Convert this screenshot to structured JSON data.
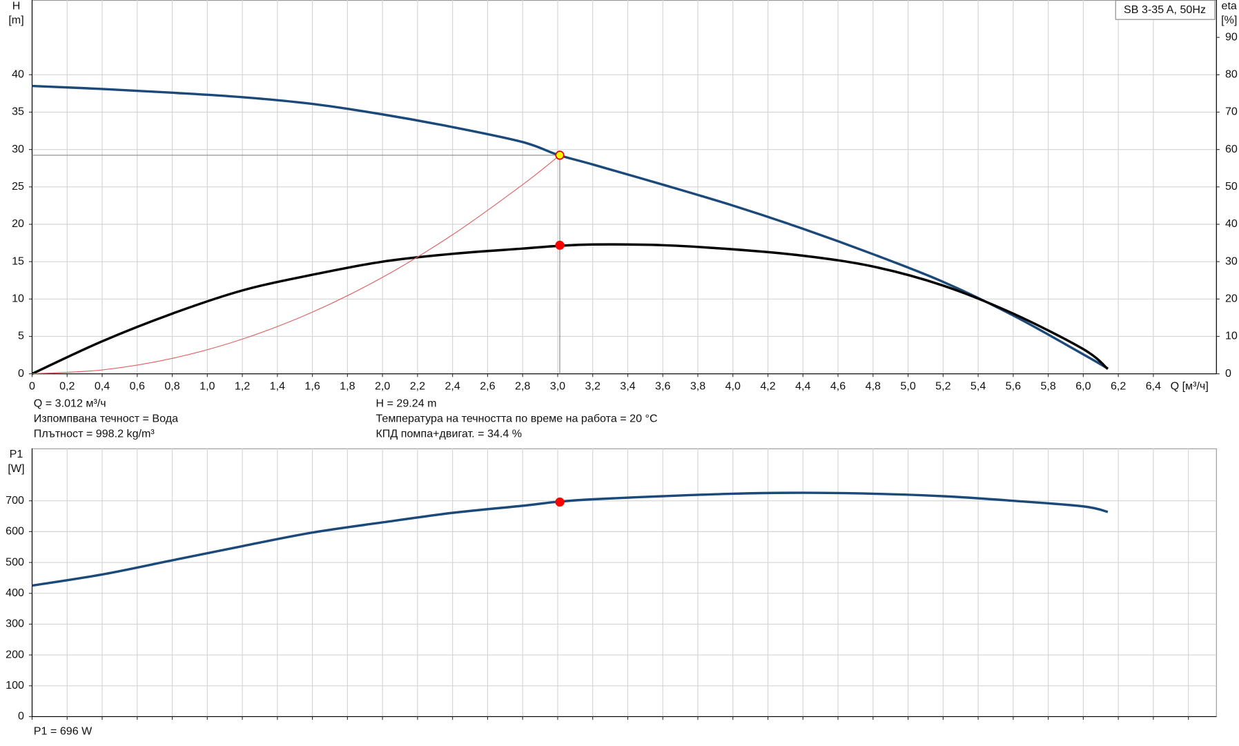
{
  "chart_data": [
    {
      "type": "line",
      "title": "SB 3-35 A, 50Hz",
      "ylabel": "H",
      "yunit": "[m]",
      "y2label": "eta",
      "y2unit": "[%]",
      "xlabel": "Q [м³/ч]",
      "xlim": [
        0,
        6.76
      ],
      "ylim": [
        0,
        50
      ],
      "y2lim": [
        0,
        100
      ],
      "grid": true,
      "show_xtick_labels": true,
      "xticks": [
        0,
        {
          "value": 0.2,
          "label": "0,2"
        },
        {
          "value": 0.4,
          "label": "0,4"
        },
        {
          "value": 0.6,
          "label": "0,6"
        },
        {
          "value": 0.8,
          "label": "0,8"
        },
        {
          "value": 1.0,
          "label": "1,0"
        },
        {
          "value": 1.2,
          "label": "1,2"
        },
        {
          "value": 1.4,
          "label": "1,4"
        },
        {
          "value": 1.6,
          "label": "1,6"
        },
        {
          "value": 1.8,
          "label": "1,8"
        },
        {
          "value": 2.0,
          "label": "2,0"
        },
        {
          "value": 2.2,
          "label": "2,2"
        },
        {
          "value": 2.4,
          "label": "2,4"
        },
        {
          "value": 2.6,
          "label": "2,6"
        },
        {
          "value": 2.8,
          "label": "2,8"
        },
        {
          "value": 3.0,
          "label": "3,0"
        },
        {
          "value": 3.2,
          "label": "3,2"
        },
        {
          "value": 3.4,
          "label": "3,4"
        },
        {
          "value": 3.6,
          "label": "3,6"
        },
        {
          "value": 3.8,
          "label": "3,8"
        },
        {
          "value": 4.0,
          "label": "4,0"
        },
        {
          "value": 4.2,
          "label": "4,2"
        },
        {
          "value": 4.4,
          "label": "4,4"
        },
        {
          "value": 4.6,
          "label": "4,6"
        },
        {
          "value": 4.8,
          "label": "4,8"
        },
        {
          "value": 5.0,
          "label": "5,0"
        },
        {
          "value": 5.2,
          "label": "5,2"
        },
        {
          "value": 5.4,
          "label": "5,4"
        },
        {
          "value": 5.6,
          "label": "5,6"
        },
        {
          "value": 5.8,
          "label": "5,8"
        },
        {
          "value": 6.0,
          "label": "6,0"
        },
        {
          "value": 6.2,
          "label": "6,2"
        },
        {
          "value": 6.4,
          "label": "6,4"
        }
      ],
      "yticks": [
        0,
        5,
        10,
        15,
        20,
        25,
        30,
        35,
        40
      ],
      "y2ticks": [
        0,
        10,
        20,
        30,
        40,
        50,
        60,
        70,
        80,
        90
      ],
      "series": [
        {
          "color": "#1b4a7a",
          "line_width": 3,
          "x": [
            0,
            0.4,
            0.8,
            1.2,
            1.6,
            2.0,
            2.4,
            2.8,
            3.0,
            3.2,
            3.6,
            4.0,
            4.4,
            4.8,
            5.2,
            5.6,
            6.0,
            6.14
          ],
          "values": [
            38.5,
            38.1,
            37.6,
            37.0,
            36.1,
            34.7,
            33.0,
            31.0,
            29.3,
            28.0,
            25.3,
            22.5,
            19.4,
            16.0,
            12.3,
            7.8,
            2.6,
            0.7
          ]
        },
        {
          "color": "#000000",
          "line_width": 3,
          "axis": "y2",
          "x": [
            0,
            0.4,
            0.8,
            1.2,
            1.6,
            2.0,
            2.4,
            2.8,
            3.0,
            3.2,
            3.6,
            4.0,
            4.4,
            4.8,
            5.2,
            5.6,
            6.0,
            6.14
          ],
          "values": [
            0,
            8.7,
            16.1,
            22.3,
            26.5,
            30.0,
            32.1,
            33.5,
            34.2,
            34.6,
            34.4,
            33.3,
            31.6,
            28.7,
            23.6,
            16.1,
            6.6,
            1.3
          ]
        },
        {
          "color": "#e06060",
          "line_width": 1,
          "x": [
            0,
            0.4,
            0.8,
            1.2,
            1.6,
            2.0,
            2.4,
            2.8,
            3.012
          ],
          "values": [
            0,
            0.52,
            2.06,
            4.64,
            8.25,
            12.9,
            18.6,
            25.3,
            29.24
          ]
        }
      ],
      "markers": [
        {
          "x": 3.012,
          "y": 29.24,
          "color": "#ffff00",
          "edge": "#e00000",
          "guides": true
        },
        {
          "x": 3.012,
          "y": 34.4,
          "axis": "y2",
          "color": "#ff0000",
          "edge": "#ff0000"
        }
      ],
      "annotations": [
        "Q = 3.012 м³/ч",
        "Изпомпвана течност = Вода",
        "Плътност = 998.2 kg/m³",
        "H = 29.24 m",
        "Температура на течността по време на работа = 20 °C",
        "КПД помпа+двигат. = 34.4 %"
      ]
    },
    {
      "type": "line",
      "ylabel": "P1",
      "yunit": "[W]",
      "xlim": [
        0,
        6.76
      ],
      "ylim": [
        0,
        870
      ],
      "grid": true,
      "show_xtick_labels": false,
      "xticks": [
        0,
        0.2,
        0.4,
        0.6,
        0.8,
        1.0,
        1.2,
        1.4,
        1.6,
        1.8,
        2.0,
        2.2,
        2.4,
        2.6,
        2.8,
        3.0,
        3.2,
        3.4,
        3.6,
        3.8,
        4.0,
        4.2,
        4.4,
        4.6,
        4.8,
        5.0,
        5.2,
        5.4,
        5.6,
        5.8,
        6.0,
        6.2,
        6.4,
        6.6
      ],
      "yticks": [
        0,
        100,
        200,
        300,
        400,
        500,
        600,
        700
      ],
      "series": [
        {
          "color": "#1b4a7a",
          "line_width": 3,
          "x": [
            0,
            0.4,
            0.8,
            1.2,
            1.6,
            2.0,
            2.4,
            2.8,
            3.0,
            3.2,
            3.6,
            4.0,
            4.4,
            4.8,
            5.2,
            5.6,
            6.0,
            6.14
          ],
          "values": [
            425,
            461,
            507,
            553,
            597,
            630,
            661,
            684,
            697,
            705,
            715,
            723,
            726,
            723,
            715,
            700,
            682,
            664
          ]
        }
      ],
      "markers": [
        {
          "x": 3.012,
          "y": 696,
          "color": "#ff0000",
          "edge": "#ff0000"
        }
      ],
      "annotations": [
        "P1 = 696 W"
      ]
    }
  ]
}
